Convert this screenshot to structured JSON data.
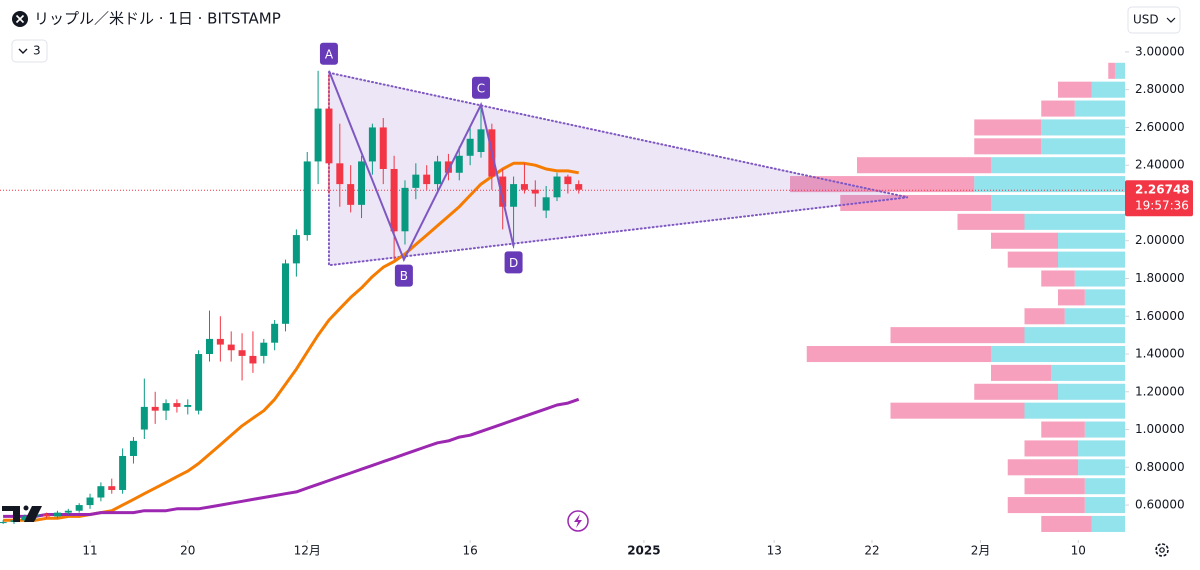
{
  "header": {
    "title": "リップル／米ドル · 1日 · BITSTAMP",
    "currency": "USD",
    "indicator_count": "3"
  },
  "chart_data": {
    "type": "candlestick",
    "x": [
      -8,
      -7,
      -6,
      -5,
      -4,
      -3,
      -2,
      -1,
      0,
      1,
      2,
      3,
      4,
      5,
      6,
      7,
      8,
      9,
      10,
      11,
      12,
      13,
      14,
      15,
      16,
      17,
      18,
      19,
      20,
      21,
      22,
      23,
      24,
      25,
      26,
      27,
      28,
      29,
      30,
      31,
      32,
      33,
      34,
      35,
      36,
      37,
      38,
      39,
      40,
      41,
      42,
      43,
      44,
      45
    ],
    "open": [
      0.51,
      0.51,
      0.52,
      0.54,
      0.55,
      0.54,
      0.56,
      0.57,
      0.6,
      0.64,
      0.7,
      0.68,
      0.86,
      1.0,
      1.12,
      1.1,
      1.14,
      1.12,
      1.1,
      1.4,
      1.48,
      1.45,
      1.42,
      1.39,
      1.39,
      1.46,
      1.56,
      1.88,
      2.03,
      2.42,
      2.7,
      2.41,
      2.3,
      2.19,
      2.42,
      2.6,
      2.38,
      2.05,
      2.28,
      2.35,
      2.3,
      2.42,
      2.36,
      2.45,
      2.47,
      2.59,
      2.34,
      2.18,
      2.3,
      2.27,
      2.16,
      2.23,
      2.34,
      2.3
    ],
    "high": [
      0.52,
      0.53,
      0.55,
      0.56,
      0.56,
      0.57,
      0.58,
      0.61,
      0.66,
      0.72,
      0.74,
      0.9,
      0.96,
      1.27,
      1.2,
      1.16,
      1.16,
      1.16,
      1.42,
      1.63,
      1.6,
      1.52,
      1.51,
      1.52,
      1.48,
      1.58,
      1.9,
      2.06,
      2.47,
      2.9,
      2.88,
      2.62,
      2.4,
      2.45,
      2.62,
      2.65,
      2.45,
      2.32,
      2.41,
      2.4,
      2.45,
      2.46,
      2.5,
      2.6,
      2.73,
      2.62,
      2.38,
      2.34,
      2.41,
      2.32,
      2.29,
      2.36,
      2.35,
      2.32
    ],
    "low": [
      0.5,
      0.5,
      0.51,
      0.52,
      0.53,
      0.53,
      0.55,
      0.56,
      0.58,
      0.62,
      0.66,
      0.66,
      0.82,
      0.95,
      1.03,
      1.05,
      1.09,
      1.08,
      1.08,
      1.36,
      1.36,
      1.36,
      1.26,
      1.3,
      1.35,
      1.42,
      1.52,
      1.81,
      2.0,
      2.3,
      2.25,
      2.18,
      2.15,
      2.12,
      2.35,
      2.3,
      1.9,
      1.98,
      2.22,
      2.27,
      2.25,
      2.32,
      2.32,
      2.4,
      2.44,
      2.27,
      2.06,
      1.96,
      2.25,
      2.18,
      2.12,
      2.21,
      2.25,
      2.25
    ],
    "close": [
      0.51,
      0.52,
      0.54,
      0.55,
      0.54,
      0.56,
      0.57,
      0.6,
      0.64,
      0.7,
      0.68,
      0.86,
      0.94,
      1.12,
      1.1,
      1.14,
      1.12,
      1.13,
      1.4,
      1.48,
      1.45,
      1.42,
      1.39,
      1.35,
      1.46,
      1.56,
      1.88,
      2.03,
      2.42,
      2.7,
      2.41,
      2.3,
      2.19,
      2.42,
      2.6,
      2.38,
      2.05,
      2.28,
      2.35,
      2.3,
      2.42,
      2.36,
      2.45,
      2.54,
      2.59,
      2.34,
      2.18,
      2.3,
      2.27,
      2.25,
      2.23,
      2.34,
      2.3,
      2.27
    ],
    "up_color": "#089981",
    "down_color": "#f23645",
    "series": [
      {
        "color": "#f57c00",
        "values": [
          0.52,
          0.52,
          0.52,
          0.52,
          0.53,
          0.53,
          0.54,
          0.54,
          0.55,
          0.56,
          0.57,
          0.6,
          0.63,
          0.66,
          0.69,
          0.72,
          0.75,
          0.78,
          0.82,
          0.87,
          0.92,
          0.97,
          1.02,
          1.06,
          1.1,
          1.16,
          1.24,
          1.32,
          1.41,
          1.5,
          1.58,
          1.64,
          1.7,
          1.75,
          1.81,
          1.86,
          1.89,
          1.93,
          1.98,
          2.03,
          2.08,
          2.13,
          2.18,
          2.24,
          2.3,
          2.34,
          2.38,
          2.41,
          2.41,
          2.4,
          2.38,
          2.37,
          2.37,
          2.36
        ]
      },
      {
        "color": "#9c27b0",
        "values": [
          0.54,
          0.54,
          0.54,
          0.54,
          0.55,
          0.55,
          0.55,
          0.55,
          0.55,
          0.56,
          0.56,
          0.56,
          0.56,
          0.57,
          0.57,
          0.57,
          0.58,
          0.58,
          0.58,
          0.59,
          0.6,
          0.61,
          0.62,
          0.63,
          0.64,
          0.65,
          0.66,
          0.67,
          0.69,
          0.71,
          0.73,
          0.75,
          0.77,
          0.79,
          0.81,
          0.83,
          0.85,
          0.87,
          0.89,
          0.91,
          0.93,
          0.94,
          0.96,
          0.97,
          0.99,
          1.01,
          1.03,
          1.05,
          1.07,
          1.09,
          1.11,
          1.13,
          1.14,
          1.16
        ]
      }
    ],
    "xlim": [
      -8.29,
      95.3
    ],
    "xticks": [
      {
        "value": 0,
        "label": "11"
      },
      {
        "value": 9,
        "label": "20"
      },
      {
        "value": 20,
        "label": "12月"
      },
      {
        "value": 35,
        "label": "16"
      },
      {
        "value": 51,
        "label": "2025"
      },
      {
        "value": 63,
        "label": "13"
      },
      {
        "value": 72,
        "label": "22"
      },
      {
        "value": 82,
        "label": "2月"
      },
      {
        "value": 91,
        "label": "10"
      }
    ],
    "ylim": [
      0.415,
      3.275
    ],
    "yticks": [
      {
        "value": 3.0,
        "label": "3.00000"
      },
      {
        "value": 2.8,
        "label": "2.80000"
      },
      {
        "value": 2.6,
        "label": "2.60000"
      },
      {
        "value": 2.4,
        "label": "2.40000"
      },
      {
        "value": 2.0,
        "label": "2.00000"
      },
      {
        "value": 1.8,
        "label": "1.80000"
      },
      {
        "value": 1.6,
        "label": "1.60000"
      },
      {
        "value": 1.4,
        "label": "1.40000"
      },
      {
        "value": 1.2,
        "label": "1.20000"
      },
      {
        "value": 1.0,
        "label": "1.00000"
      },
      {
        "value": 0.8,
        "label": "0.80000"
      },
      {
        "value": 0.6,
        "label": "0.60000"
      }
    ],
    "grid": false,
    "last_price": {
      "value": 2.26748,
      "countdown": "19:57:36",
      "color": "#f23645"
    },
    "pattern": {
      "labels": [
        "A",
        "B",
        "C",
        "D"
      ],
      "x": [
        22,
        28.9,
        36,
        39
      ],
      "values": [
        2.9,
        1.9,
        2.72,
        1.97
      ],
      "color": "#7e57c2"
    },
    "triangle": {
      "x": [
        22,
        75.3,
        22
      ],
      "values": [
        2.89,
        2.23,
        1.87
      ]
    },
    "volume_profile": {
      "levels": [
        0.5,
        0.6,
        0.7,
        0.8,
        0.9,
        1.0,
        1.1,
        1.2,
        1.3,
        1.4,
        1.5,
        1.6,
        1.7,
        1.8,
        1.9,
        2.0,
        2.1,
        2.2,
        2.3,
        2.4,
        2.5,
        2.6,
        2.7,
        2.8,
        2.9
      ],
      "up": [
        10,
        12,
        12,
        14,
        14,
        12,
        30,
        20,
        22,
        40,
        30,
        18,
        12,
        15,
        20,
        20,
        30,
        40,
        45,
        40,
        25,
        25,
        15,
        10,
        3
      ],
      "down": [
        15,
        23,
        18,
        21,
        16,
        13,
        40,
        25,
        18,
        55,
        40,
        12,
        8,
        10,
        15,
        20,
        20,
        45,
        55,
        40,
        20,
        20,
        10,
        10,
        2
      ],
      "up_color": "#80deea",
      "down_color": "#f48fb1"
    }
  }
}
